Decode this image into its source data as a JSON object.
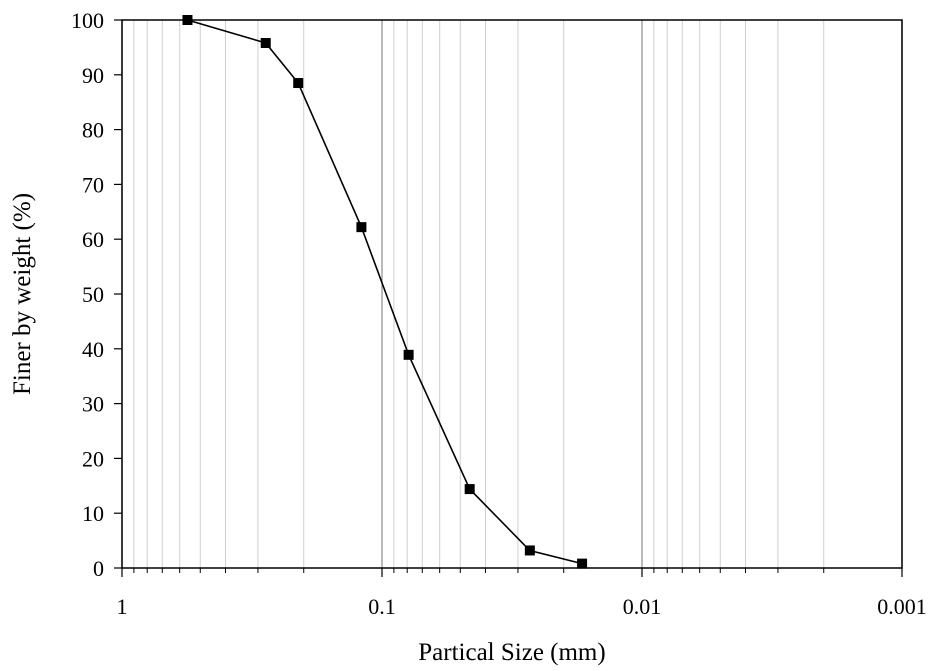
{
  "chart_data": {
    "type": "scatter",
    "title": "",
    "xlabel": "Partical Size (mm)",
    "ylabel": "Finer by weight (%)",
    "x_scale": "log",
    "x_reversed": true,
    "xlim": [
      1,
      0.001
    ],
    "ylim": [
      0,
      100
    ],
    "x_ticks": [
      {
        "value": 1,
        "label": "1"
      },
      {
        "value": 0.1,
        "label": "0.1"
      },
      {
        "value": 0.01,
        "label": "0.01"
      },
      {
        "value": 0.001,
        "label": "0.001"
      }
    ],
    "y_ticks": [
      {
        "value": 0,
        "label": "0"
      },
      {
        "value": 10,
        "label": "10"
      },
      {
        "value": 20,
        "label": "20"
      },
      {
        "value": 30,
        "label": "30"
      },
      {
        "value": 40,
        "label": "40"
      },
      {
        "value": 50,
        "label": "50"
      },
      {
        "value": 60,
        "label": "60"
      },
      {
        "value": 70,
        "label": "70"
      },
      {
        "value": 80,
        "label": "80"
      },
      {
        "value": 90,
        "label": "90"
      },
      {
        "value": 100,
        "label": "100"
      }
    ],
    "grid": "major-and-minor",
    "marker": "square",
    "line_color": "#000000",
    "grid_major_color": "#8c8c8c",
    "grid_minor_color": "#cfcfcf",
    "series": [
      {
        "points": [
          {
            "x": 0.56,
            "y": 100
          },
          {
            "x": 0.28,
            "y": 95.8
          },
          {
            "x": 0.21,
            "y": 88.5
          },
          {
            "x": 0.12,
            "y": 62.2
          },
          {
            "x": 0.079,
            "y": 38.9
          },
          {
            "x": 0.046,
            "y": 14.4
          },
          {
            "x": 0.027,
            "y": 3.2
          },
          {
            "x": 0.017,
            "y": 0.8
          }
        ]
      }
    ]
  }
}
